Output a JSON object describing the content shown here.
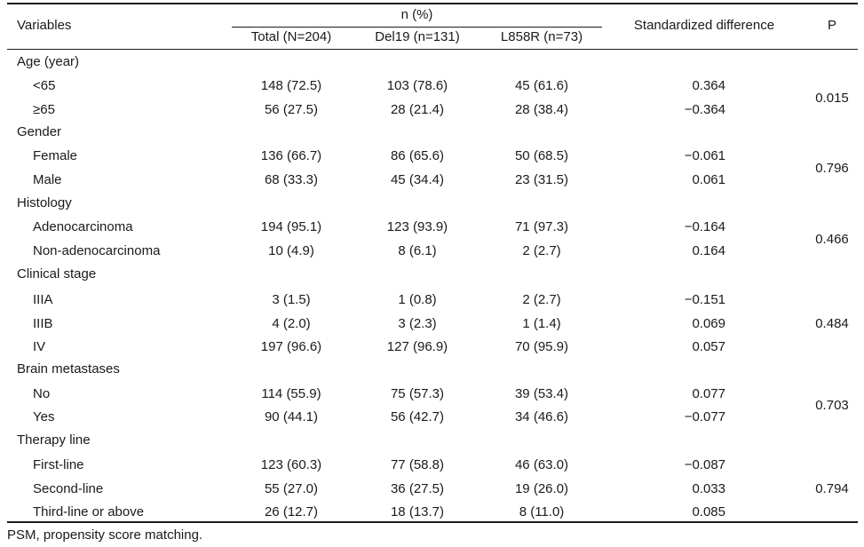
{
  "header": {
    "variables": "Variables",
    "n_percent": "n (%)",
    "total": "Total (N=204)",
    "del19": "Del19 (n=131)",
    "l858r": "L858R (n=73)",
    "std_diff": "Standardized difference",
    "p": "P"
  },
  "groups": [
    {
      "label": "Age (year)",
      "p": "0.015",
      "rows": [
        {
          "label": "<65",
          "total": "148 (72.5)",
          "del19": "103 (78.6)",
          "l858r": "45 (61.6)",
          "std": "0.364"
        },
        {
          "label": "≥65",
          "total": "56 (27.5)",
          "del19": "28 (21.4)",
          "l858r": "28 (38.4)",
          "std": "−0.364"
        }
      ]
    },
    {
      "label": "Gender",
      "p": "0.796",
      "rows": [
        {
          "label": "Female",
          "total": "136 (66.7)",
          "del19": "86 (65.6)",
          "l858r": "50 (68.5)",
          "std": "−0.061"
        },
        {
          "label": "Male",
          "total": "68 (33.3)",
          "del19": "45 (34.4)",
          "l858r": "23 (31.5)",
          "std": "0.061"
        }
      ]
    },
    {
      "label": "Histology",
      "p": "0.466",
      "rows": [
        {
          "label": "Adenocarcinoma",
          "total": "194 (95.1)",
          "del19": "123 (93.9)",
          "l858r": "71 (97.3)",
          "std": "−0.164"
        },
        {
          "label": "Non-adenocarcinoma",
          "total": "10 (4.9)",
          "del19": "8 (6.1)",
          "l858r": "2 (2.7)",
          "std": "0.164"
        }
      ]
    },
    {
      "label": "Clinical stage",
      "p": "0.484",
      "rows": [
        {
          "label": "IIIA",
          "total": "3 (1.5)",
          "del19": "1 (0.8)",
          "l858r": "2 (2.7)",
          "std": "−0.151"
        },
        {
          "label": "IIIB",
          "total": "4 (2.0)",
          "del19": "3 (2.3)",
          "l858r": "1 (1.4)",
          "std": "0.069"
        },
        {
          "label": "IV",
          "total": "197 (96.6)",
          "del19": "127 (96.9)",
          "l858r": "70 (95.9)",
          "std": "0.057"
        }
      ]
    },
    {
      "label": "Brain metastases",
      "p": "0.703",
      "rows": [
        {
          "label": "No",
          "total": "114 (55.9)",
          "del19": "75 (57.3)",
          "l858r": "39 (53.4)",
          "std": "0.077"
        },
        {
          "label": "Yes",
          "total": "90 (44.1)",
          "del19": "56 (42.7)",
          "l858r": "34 (46.6)",
          "std": "−0.077"
        }
      ]
    },
    {
      "label": "Therapy line",
      "p": "0.794",
      "rows": [
        {
          "label": "First-line",
          "total": "123 (60.3)",
          "del19": "77 (58.8)",
          "l858r": "46 (63.0)",
          "std": "−0.087"
        },
        {
          "label": "Second-line",
          "total": "55 (27.0)",
          "del19": "36 (27.5)",
          "l858r": "19 (26.0)",
          "std": "0.033"
        },
        {
          "label": "Third-line or above",
          "total": "26 (12.7)",
          "del19": "18 (13.7)",
          "l858r": "8 (11.0)",
          "std": "0.085"
        }
      ]
    }
  ],
  "footnote": "PSM, propensity score matching."
}
